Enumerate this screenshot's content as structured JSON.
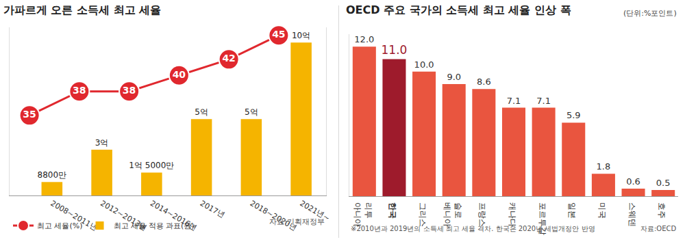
{
  "chart_data": [
    {
      "type": "bar",
      "title": "가파르게 오른 소득세 최고 세율",
      "categories": [
        "2008~2011년",
        "2012~2013년",
        "2014~2016년",
        "2017년",
        "2018~2020년",
        "2021년~"
      ],
      "series": [
        {
          "name": "최고 세율(%)",
          "type": "line",
          "axis": "y2",
          "color": "#e0282e",
          "marker": "circle",
          "values": [
            35,
            38,
            38,
            40,
            42,
            45
          ]
        },
        {
          "name": "최고 세율 적용 과표(원)",
          "type": "bar",
          "color": "#f5b400",
          "values": [
            88000000,
            300000000,
            150000000,
            500000000,
            500000000,
            1000000000
          ],
          "value_labels": [
            "8800만",
            "3억",
            "1억 5000만",
            "5억",
            "5억",
            "10억"
          ]
        }
      ],
      "ylim": [
        0,
        1100000000
      ],
      "yticks": [],
      "y2lim": [
        25,
        46
      ],
      "y2ticks": [],
      "grid": false,
      "legend": "bottom left",
      "data_labels": true,
      "tick_labels": "x",
      "source": "자료:기획재정부"
    },
    {
      "type": "bar",
      "title": "OECD 주요 국가의 소득세 최고 세율 인상 폭",
      "subtitle": "(단위:%포인트)",
      "categories": [
        "리투아니아",
        "한국",
        "그리스",
        "슬로베니아",
        "프랑스",
        "캐나다",
        "포르투갈",
        "일본",
        "미국",
        "스웨덴",
        "호주"
      ],
      "values": [
        12.0,
        11.0,
        10.0,
        9.0,
        8.6,
        7.1,
        7.1,
        5.9,
        1.8,
        0.6,
        0.5
      ],
      "value_labels": [
        "12.0",
        "11.0",
        "10.0",
        "9.0",
        "8.6",
        "7.1",
        "7.1",
        "5.9",
        "1.8",
        "0.6",
        "0.5"
      ],
      "colors": [
        "#e9553f",
        "#9e1b2c",
        "#e9553f",
        "#e9553f",
        "#e9553f",
        "#e9553f",
        "#e9553f",
        "#e9553f",
        "#e9553f",
        "#e9553f",
        "#e9553f"
      ],
      "ylim": [
        0,
        13
      ],
      "yticks": [],
      "grid": false,
      "data_labels": true,
      "tick_labels": "x",
      "note": "※2010년과 2019년의 소득세 최고 세율 격차. 한국은 2020년 세법개정안 반영",
      "source": "자료:OECD"
    }
  ]
}
